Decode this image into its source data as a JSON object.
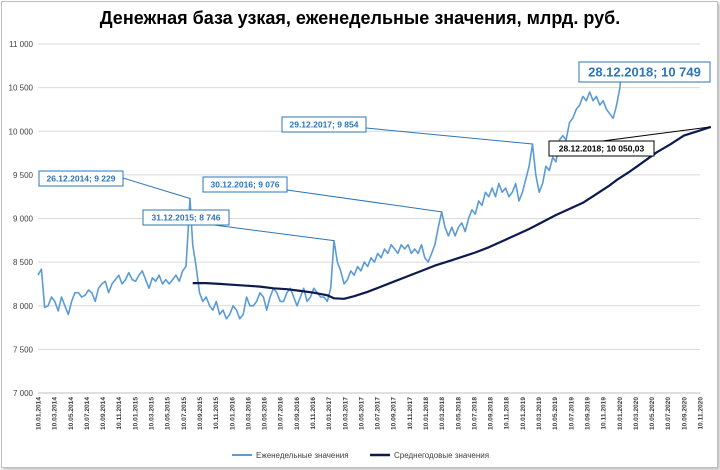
{
  "chart_data": {
    "type": "line",
    "title": "Денежная база узкая, еженедельные значения, млрд. руб.",
    "ylim": [
      7000,
      11000
    ],
    "y_ticks": [
      "7 000",
      "7 500",
      "8 000",
      "8 500",
      "9 000",
      "9 500",
      "10 000",
      "10 500",
      "11 000"
    ],
    "y_tick_values": [
      7000,
      7500,
      8000,
      8500,
      9000,
      9500,
      10000,
      10500,
      11000
    ],
    "x_ticks": [
      "10.01.2014",
      "10.03.2014",
      "10.05.2014",
      "10.07.2014",
      "10.09.2014",
      "10.11.2014",
      "10.01.2015",
      "10.03.2015",
      "10.05.2015",
      "10.07.2015",
      "10.09.2015",
      "10.11.2015",
      "10.01.2016",
      "10.03.2016",
      "10.05.2016",
      "10.07.2016",
      "10.09.2016",
      "10.11.2016",
      "10.01.2017",
      "10.03.2017",
      "10.05.2017",
      "10.07.2017",
      "10.09.2017",
      "10.11.2017",
      "10.01.2018",
      "10.03.2018",
      "10.05.2018",
      "10.07.2018",
      "10.09.2018",
      "10.11.2018",
      "10.01.2019",
      "10.03.2019",
      "10.05.2019",
      "10.07.2019",
      "10.09.2019",
      "10.11.2019",
      "10.01.2020",
      "10.03.2020",
      "10.05.2020",
      "10.07.2020",
      "10.09.2020",
      "10.11.2020"
    ],
    "series": [
      {
        "name": "Еженедельные значения",
        "color": "#5b9bd5",
        "points": [
          [
            0,
            8350
          ],
          [
            0.25,
            8420
          ],
          [
            0.5,
            7980
          ],
          [
            0.75,
            8000
          ],
          [
            1,
            8100
          ],
          [
            1.25,
            8050
          ],
          [
            1.5,
            7940
          ],
          [
            1.75,
            8100
          ],
          [
            2,
            8000
          ],
          [
            2.25,
            7900
          ],
          [
            2.5,
            8050
          ],
          [
            2.75,
            8150
          ],
          [
            3,
            8150
          ],
          [
            3.25,
            8100
          ],
          [
            3.5,
            8120
          ],
          [
            3.75,
            8180
          ],
          [
            4,
            8150
          ],
          [
            4.25,
            8050
          ],
          [
            4.5,
            8200
          ],
          [
            4.75,
            8250
          ],
          [
            5,
            8280
          ],
          [
            5.25,
            8150
          ],
          [
            5.5,
            8250
          ],
          [
            5.75,
            8300
          ],
          [
            6,
            8350
          ],
          [
            6.25,
            8250
          ],
          [
            6.5,
            8300
          ],
          [
            6.75,
            8380
          ],
          [
            7,
            8300
          ],
          [
            7.25,
            8280
          ],
          [
            7.5,
            8350
          ],
          [
            7.75,
            8400
          ],
          [
            8,
            8300
          ],
          [
            8.25,
            8200
          ],
          [
            8.5,
            8320
          ],
          [
            8.75,
            8280
          ],
          [
            9,
            8350
          ],
          [
            9.25,
            8250
          ],
          [
            9.5,
            8300
          ],
          [
            9.75,
            8250
          ],
          [
            10,
            8300
          ],
          [
            10.25,
            8350
          ],
          [
            10.5,
            8280
          ],
          [
            10.75,
            8400
          ],
          [
            11,
            8450
          ],
          [
            11.3,
            9229
          ],
          [
            11.5,
            8700
          ],
          [
            11.75,
            8450
          ],
          [
            12,
            8150
          ],
          [
            12.25,
            8050
          ],
          [
            12.5,
            8100
          ],
          [
            12.75,
            8000
          ],
          [
            13,
            7950
          ],
          [
            13.25,
            8050
          ],
          [
            13.5,
            7900
          ],
          [
            13.75,
            7950
          ],
          [
            14,
            7850
          ],
          [
            14.25,
            7900
          ],
          [
            14.5,
            8000
          ],
          [
            14.75,
            7950
          ],
          [
            15,
            7850
          ],
          [
            15.25,
            7900
          ],
          [
            15.5,
            8100
          ],
          [
            15.75,
            8000
          ],
          [
            16,
            8000
          ],
          [
            16.25,
            8050
          ],
          [
            16.5,
            8150
          ],
          [
            16.75,
            8100
          ],
          [
            17,
            7950
          ],
          [
            17.25,
            8100
          ],
          [
            17.5,
            8200
          ],
          [
            17.75,
            8150
          ],
          [
            18,
            8050
          ],
          [
            18.25,
            8050
          ],
          [
            18.5,
            8150
          ],
          [
            18.75,
            8200
          ],
          [
            19,
            8100
          ],
          [
            19.25,
            8000
          ],
          [
            19.5,
            8100
          ],
          [
            19.75,
            8200
          ],
          [
            20,
            8050
          ],
          [
            20.25,
            8100
          ],
          [
            20.5,
            8200
          ],
          [
            20.75,
            8150
          ],
          [
            21,
            8100
          ],
          [
            21.25,
            8100
          ],
          [
            21.5,
            8050
          ],
          [
            21.75,
            8200
          ],
          [
            22,
            8746
          ],
          [
            22.25,
            8500
          ],
          [
            22.5,
            8400
          ],
          [
            22.75,
            8250
          ],
          [
            23,
            8300
          ],
          [
            23.25,
            8400
          ],
          [
            23.5,
            8350
          ],
          [
            23.75,
            8450
          ],
          [
            24,
            8400
          ],
          [
            24.25,
            8500
          ],
          [
            24.5,
            8450
          ],
          [
            24.75,
            8550
          ],
          [
            25,
            8500
          ],
          [
            25.25,
            8600
          ],
          [
            25.5,
            8550
          ],
          [
            25.75,
            8650
          ],
          [
            26,
            8600
          ],
          [
            26.25,
            8700
          ],
          [
            26.5,
            8650
          ],
          [
            26.75,
            8600
          ],
          [
            27,
            8700
          ],
          [
            27.25,
            8650
          ],
          [
            27.5,
            8700
          ],
          [
            27.75,
            8600
          ],
          [
            28,
            8650
          ],
          [
            28.25,
            8600
          ],
          [
            28.5,
            8700
          ],
          [
            28.75,
            8550
          ],
          [
            29,
            8500
          ],
          [
            29.25,
            8600
          ],
          [
            29.5,
            8700
          ],
          [
            29.75,
            8900
          ],
          [
            30,
            9076
          ],
          [
            30.25,
            8900
          ],
          [
            30.5,
            8800
          ],
          [
            30.75,
            8900
          ],
          [
            31,
            8800
          ],
          [
            31.25,
            8900
          ],
          [
            31.5,
            8950
          ],
          [
            31.75,
            8850
          ],
          [
            32,
            9000
          ],
          [
            32.25,
            9100
          ],
          [
            32.5,
            9050
          ],
          [
            32.75,
            9200
          ],
          [
            33,
            9150
          ],
          [
            33.25,
            9300
          ],
          [
            33.5,
            9250
          ],
          [
            33.75,
            9350
          ],
          [
            34,
            9250
          ],
          [
            34.25,
            9400
          ],
          [
            34.5,
            9300
          ],
          [
            34.75,
            9350
          ],
          [
            35,
            9250
          ],
          [
            35.25,
            9300
          ],
          [
            35.5,
            9400
          ],
          [
            35.75,
            9200
          ],
          [
            36,
            9300
          ],
          [
            36.25,
            9450
          ],
          [
            36.5,
            9600
          ],
          [
            36.75,
            9854
          ],
          [
            37,
            9500
          ],
          [
            37.25,
            9300
          ],
          [
            37.5,
            9400
          ],
          [
            37.75,
            9600
          ],
          [
            38,
            9550
          ],
          [
            38.25,
            9700
          ],
          [
            38.5,
            9650
          ],
          [
            38.75,
            9900
          ],
          [
            39,
            9950
          ],
          [
            39.25,
            9900
          ],
          [
            39.5,
            10100
          ],
          [
            39.75,
            10150
          ],
          [
            40,
            10250
          ],
          [
            40.25,
            10300
          ],
          [
            40.5,
            10400
          ],
          [
            40.75,
            10350
          ],
          [
            41,
            10450
          ],
          [
            41.25,
            10350
          ],
          [
            41.5,
            10400
          ],
          [
            41.75,
            10300
          ],
          [
            42,
            10350
          ],
          [
            42.25,
            10250
          ],
          [
            42.5,
            10200
          ],
          [
            42.75,
            10150
          ],
          [
            43,
            10300
          ],
          [
            43.25,
            10500
          ],
          [
            43.4,
            10749
          ]
        ]
      },
      {
        "name": "Среднегодовые значения",
        "color": "#0d1a4f",
        "points": [
          [
            11.5,
            8260
          ],
          [
            12.5,
            8260
          ],
          [
            13.5,
            8250
          ],
          [
            14.5,
            8240
          ],
          [
            15.5,
            8230
          ],
          [
            16.5,
            8220
          ],
          [
            17.5,
            8200
          ],
          [
            18.5,
            8190
          ],
          [
            19.5,
            8170
          ],
          [
            20.5,
            8150
          ],
          [
            21.5,
            8120
          ],
          [
            22,
            8085
          ],
          [
            22.75,
            8080
          ],
          [
            23.5,
            8110
          ],
          [
            24.5,
            8160
          ],
          [
            25.5,
            8220
          ],
          [
            26.5,
            8280
          ],
          [
            27.5,
            8340
          ],
          [
            28.5,
            8400
          ],
          [
            29.5,
            8460
          ],
          [
            30.5,
            8510
          ],
          [
            31.5,
            8560
          ],
          [
            32.5,
            8610
          ],
          [
            33.5,
            8670
          ],
          [
            34.5,
            8740
          ],
          [
            35.5,
            8810
          ],
          [
            36.5,
            8880
          ],
          [
            37.5,
            8960
          ],
          [
            38.5,
            9040
          ],
          [
            39.5,
            9110
          ],
          [
            40.5,
            9180
          ],
          [
            41.5,
            9280
          ],
          [
            42.5,
            9380
          ],
          [
            43,
            9440
          ],
          [
            44,
            9540
          ],
          [
            45,
            9650
          ],
          [
            46,
            9760
          ],
          [
            47,
            9850
          ],
          [
            48,
            9950
          ],
          [
            49,
            10000
          ],
          [
            50,
            10050
          ]
        ]
      }
    ],
    "annotations": [
      {
        "label": "26.12.2014; 9 229",
        "style": "blue"
      },
      {
        "label": "31.12.2015; 8 746",
        "style": "blue"
      },
      {
        "label": "30.12.2016; 9 076",
        "style": "blue"
      },
      {
        "label": "29.12.2017; 9 854",
        "style": "blue"
      },
      {
        "label": "28.12.2018; 10 749",
        "style": "blue-big"
      },
      {
        "label": "28.12.2018; 10 050,03",
        "style": "dark"
      }
    ],
    "legend": {
      "position": "bottom",
      "items": [
        "Еженедельные значения",
        "Среднегодовые значения"
      ]
    }
  }
}
